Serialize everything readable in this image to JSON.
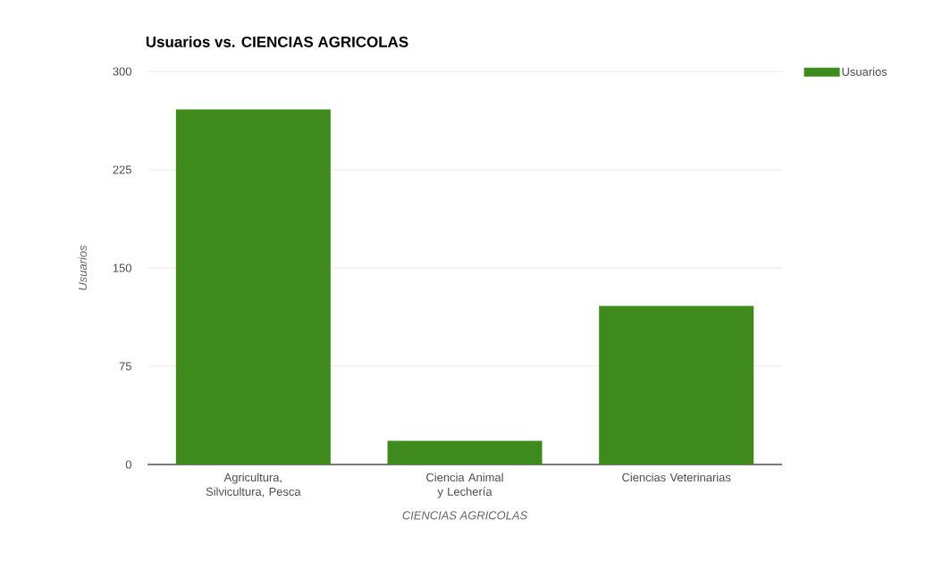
{
  "chart_data": {
    "type": "bar",
    "title": "Usuarios vs. CIENCIAS AGRICOLAS",
    "xlabel": "CIENCIAS AGRICOLAS",
    "ylabel": "Usuarios",
    "categories": [
      "Agricultura, Silvicultura, Pesca",
      "Ciencia Animal y Lechería",
      "Ciencias Veterinarias"
    ],
    "series": [
      {
        "name": "Usuarios",
        "color": "#3f8a1c",
        "values": [
          271,
          18,
          121
        ]
      }
    ],
    "ylim": [
      0,
      300
    ],
    "yticks": [
      0,
      75,
      150,
      225,
      300
    ],
    "grid": "y",
    "legend": "top right"
  }
}
